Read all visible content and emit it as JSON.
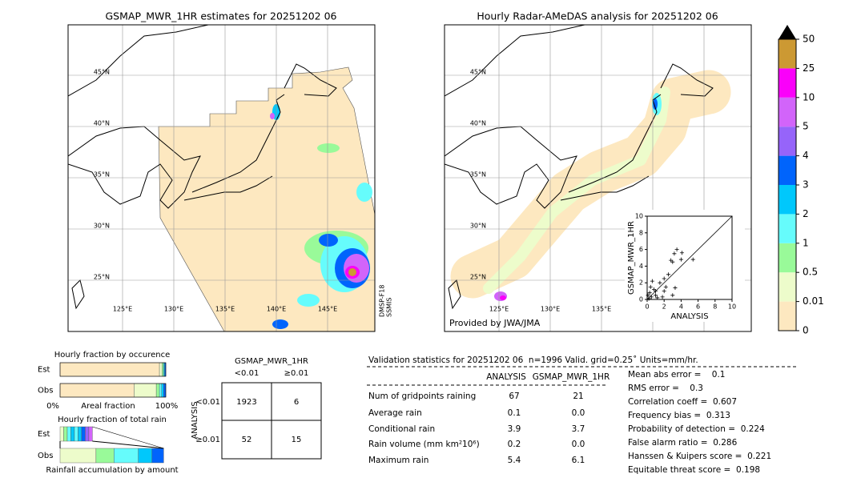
{
  "map_left": {
    "title": "GSMAP_MWR_1HR estimates for 20251202 06",
    "lat_labels": [
      "45°N",
      "40°N",
      "35°N",
      "30°N",
      "25°N"
    ],
    "lon_labels": [
      "125°E",
      "130°E",
      "135°E",
      "140°E",
      "145°E"
    ],
    "satellite": [
      "DMSP-F18",
      "SSMIS"
    ]
  },
  "map_right": {
    "title": "Hourly Radar-AMeDAS analysis for 20251202 06",
    "lat_labels": [
      "45°N",
      "40°N",
      "35°N",
      "30°N",
      "25°N"
    ],
    "lon_labels": [
      "125°E",
      "130°E",
      "135°E"
    ],
    "credit": "Provided by JWA/JMA"
  },
  "colorbar": {
    "ticks": [
      0,
      0.01,
      0.5,
      1,
      2,
      3,
      4,
      5,
      10,
      25,
      50
    ],
    "colors": [
      "#fde8c0",
      "#edfccb",
      "#99fa99",
      "#66fcfc",
      "#00c8fc",
      "#0064fc",
      "#9664fa",
      "#d264fa",
      "#fa00fa",
      "#cc9933"
    ]
  },
  "chart_data": {
    "type": "scatter",
    "xlabel": "ANALYSIS",
    "ylabel": "GSMAP_MWR_1HR",
    "xlim": [
      0,
      10
    ],
    "ylim": [
      0,
      10
    ],
    "xticks": [
      0,
      2,
      4,
      6,
      8,
      10
    ],
    "yticks": [
      0,
      2,
      4,
      6,
      8,
      10
    ],
    "x": [
      0.2,
      0.5,
      0.8,
      1,
      1.5,
      2,
      2,
      2.5,
      3,
      3,
      3.2,
      3.5,
      4,
      5.4,
      1.2,
      0.3,
      0.6,
      1.8,
      2.2,
      0.4,
      1,
      0.1,
      3.3,
      2.8,
      4.1
    ],
    "y": [
      0.1,
      0.3,
      1.2,
      0.5,
      2,
      1,
      2.5,
      3,
      0.5,
      4.5,
      5.5,
      6,
      4.8,
      4.8,
      0.2,
      0.8,
      2.2,
      0.3,
      1.5,
      1.5,
      1,
      0.5,
      1.4,
      4.7,
      5.6
    ]
  },
  "occurrence": {
    "title": "Hourly fraction by occurence",
    "axis_labels": [
      "0%",
      "Areal fraction",
      "100%"
    ],
    "rows": [
      {
        "label": "Est",
        "values": [
          94,
          2.5,
          1.5,
          1,
          1
        ],
        "colors": [
          "#fde8c0",
          "#edfccb",
          "#99fa99",
          "#00c8fc",
          "#0064fc"
        ]
      },
      {
        "label": "Obs",
        "values": [
          70,
          21,
          3,
          2,
          2,
          2
        ],
        "colors": [
          "#fde8c0",
          "#edfccb",
          "#99fa99",
          "#66fcfc",
          "#00c8fc",
          "#0064fc"
        ]
      }
    ]
  },
  "rain_fraction": {
    "title": "Hourly fraction of total rain",
    "axis_label": "Rainfall accumulation by amount",
    "rows": [
      {
        "label": "Est",
        "values": [
          3.4,
          3.4,
          3.4,
          3.4,
          3.4,
          3.4,
          3.4,
          3.4,
          3.4
        ],
        "colors": [
          "#edfccb",
          "#99fa99",
          "#66fcfc",
          "#00c8fc",
          "#66fcfc",
          "#00c8fc",
          "#0064fc",
          "#9664fa",
          "#d264fa"
        ]
      },
      {
        "label": "Obs",
        "values": [
          34,
          17,
          23,
          13,
          11
        ],
        "colors": [
          "#edfccb",
          "#99fa99",
          "#66fcfc",
          "#00c8fc",
          "#0064fc"
        ]
      }
    ]
  },
  "contingency": {
    "title": "GSMAP_MWR_1HR",
    "col_headers": [
      "<0.01",
      "≥0.01"
    ],
    "row_title": "ANALYSIS",
    "row_headers": [
      "<0.01",
      "≥0.01"
    ],
    "cells": [
      [
        "1923",
        "6"
      ],
      [
        "52",
        "15"
      ]
    ]
  },
  "stats": {
    "header": "Validation statistics for 20251202 06  n=1996 Valid. grid=0.25˚ Units=mm/hr.",
    "columns": [
      "ANALYSIS",
      "GSMAP_MWR_1HR"
    ],
    "rows": [
      [
        "Num of gridpoints raining",
        "67",
        "21"
      ],
      [
        "Average rain",
        "0.1",
        "0.0"
      ],
      [
        "Conditional rain",
        "3.9",
        "3.7"
      ],
      [
        "Rain volume (mm km²10⁶)",
        "0.2",
        "0.0"
      ],
      [
        "Maximum rain",
        "5.4",
        "6.1"
      ]
    ],
    "scores": [
      "Mean abs error =    0.1",
      "RMS error =    0.3",
      "Correlation coeff =  0.607",
      "Frequency bias =  0.313",
      "Probability of detection =  0.224",
      "False alarm ratio =  0.286",
      "Hanssen & Kuipers score =  0.221",
      "Equitable threat score =  0.198"
    ]
  }
}
